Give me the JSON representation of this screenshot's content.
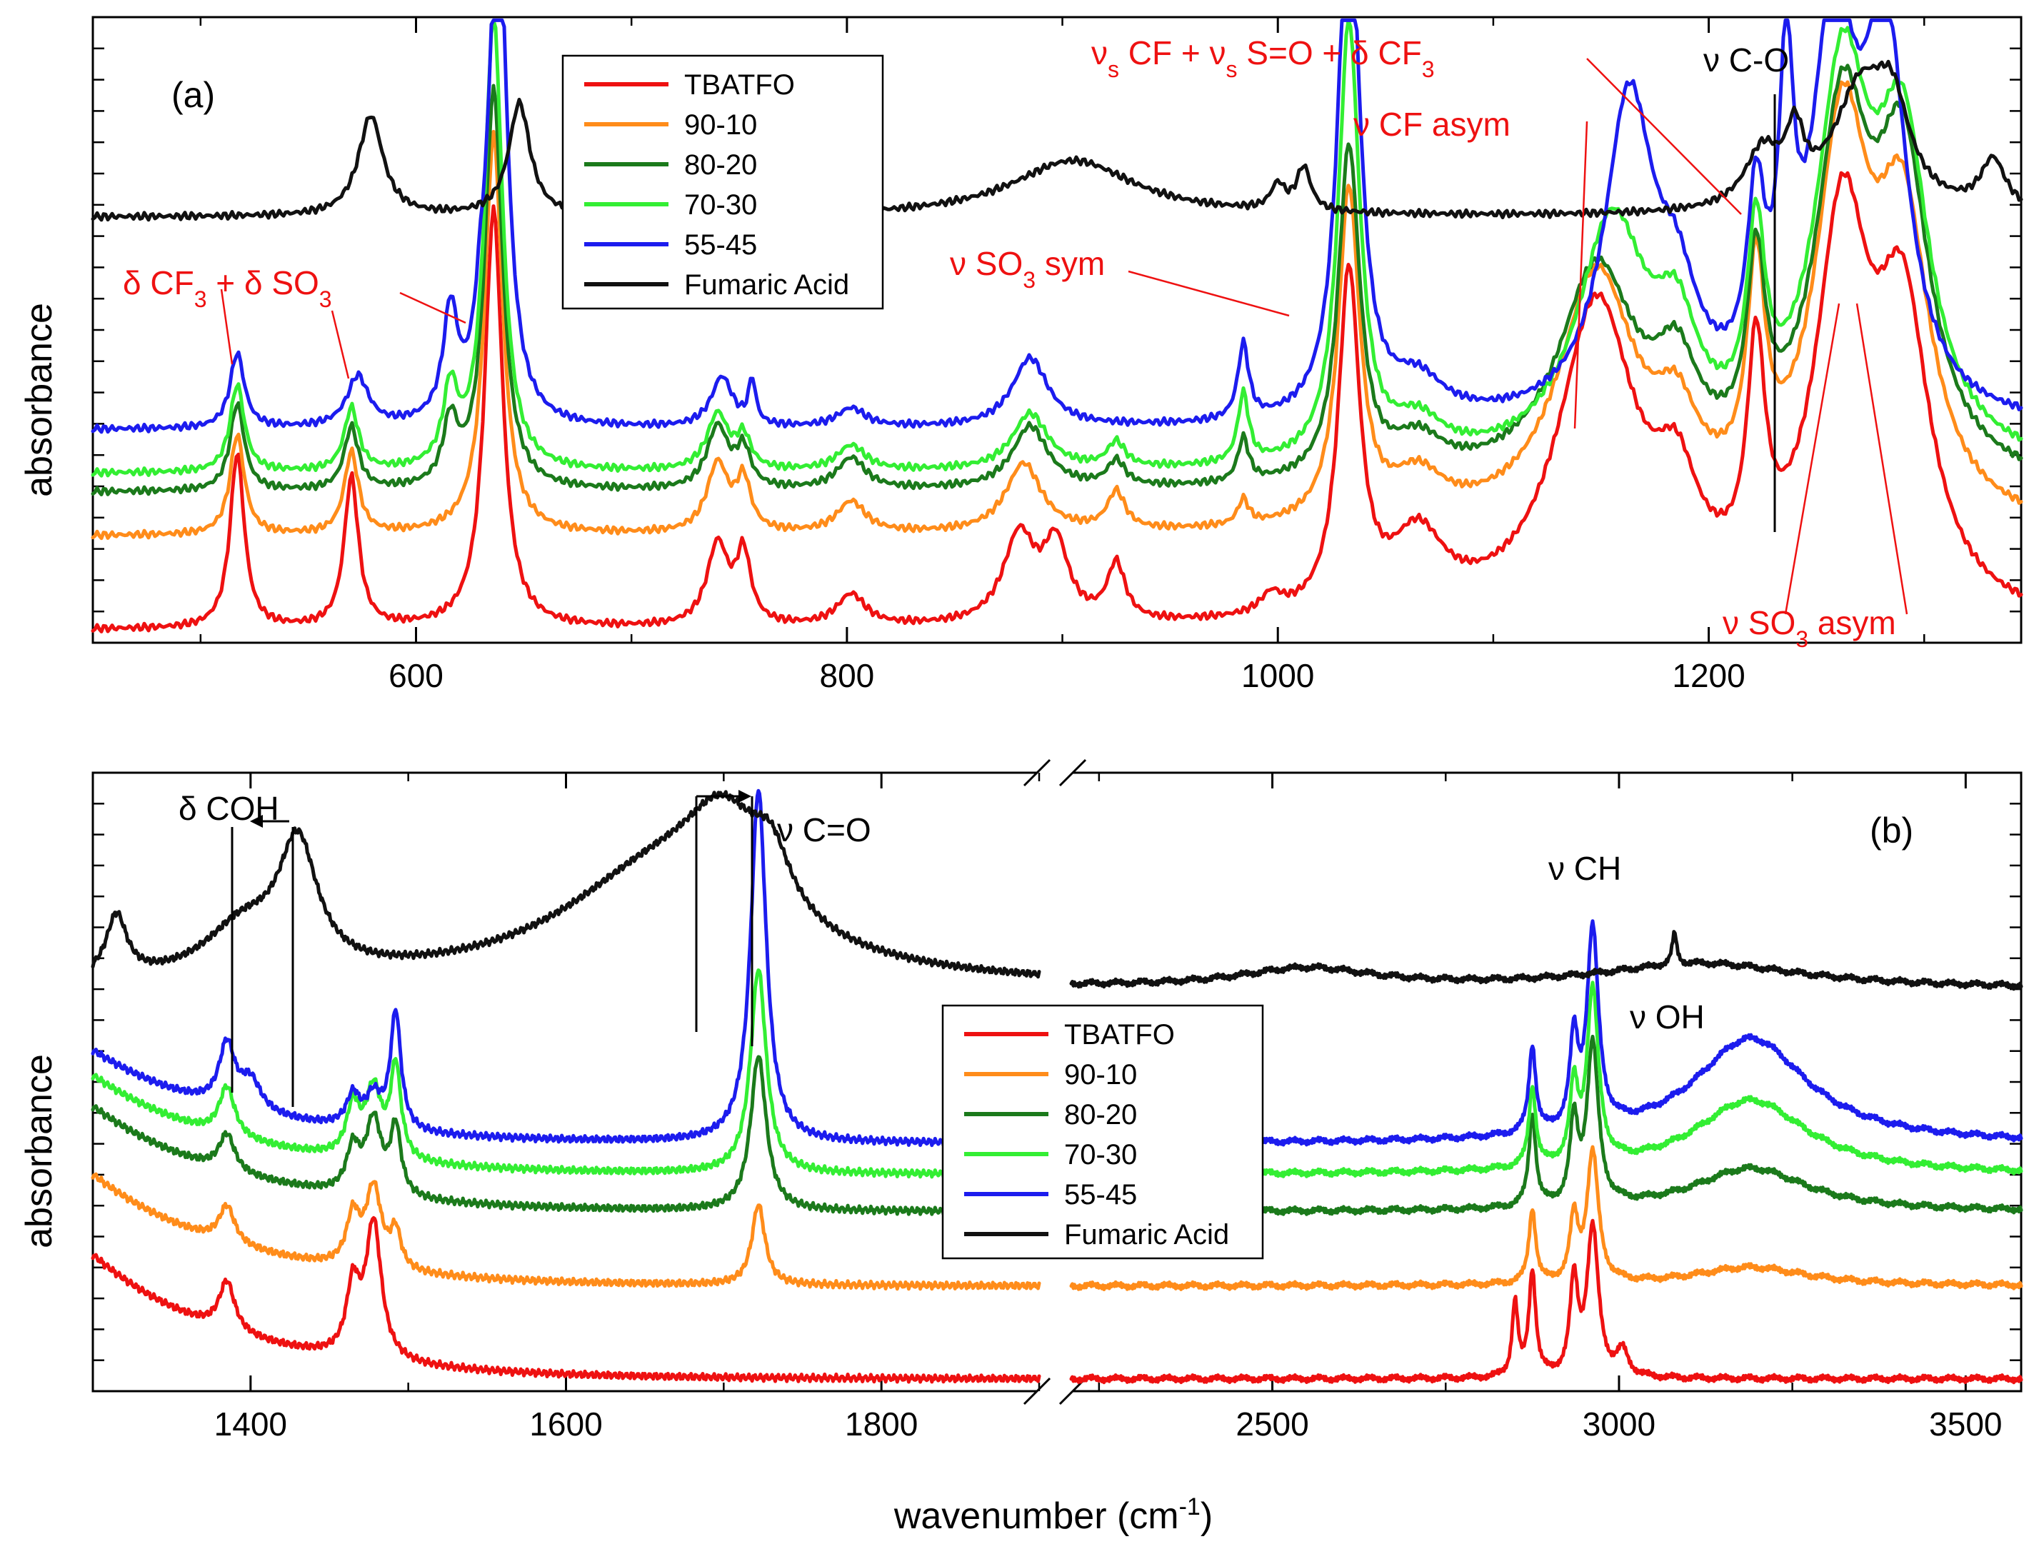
{
  "figure": {
    "y_axis_label": "absorbance",
    "x_axis_label_base": "wavenumber (cm",
    "x_axis_label_sup": "-1",
    "x_axis_label_end": ")"
  },
  "colors": {
    "TBATFO": "#ee1111",
    "90-10": "#ff8c1a",
    "80-20": "#1b7a1b",
    "70-30": "#33ee33",
    "55-45": "#1c1cee",
    "Fumaric Acid": "#111111",
    "annotation_red": "#ee1111"
  },
  "legend": {
    "entries": [
      "TBATFO",
      "90-10",
      "80-20",
      "70-30",
      "55-45",
      "Fumaric Acid"
    ]
  },
  "chart_data": [
    {
      "id": "a",
      "type": "line",
      "panel_label": "(a)",
      "xlabel": "",
      "ylabel": "absorbance",
      "xlim": [
        450,
        1345
      ],
      "ylim": [
        0,
        100
      ],
      "x_ticks": [
        600,
        800,
        1000,
        1200
      ],
      "x_tick_labels": [
        "600",
        "800",
        "1000",
        "1200"
      ],
      "annotations": [
        {
          "text": "δ CF3 + δ SO3",
          "color": "red"
        },
        {
          "text": "ν SO3 sym",
          "color": "red"
        },
        {
          "text": "ν CF asym",
          "color": "red"
        },
        {
          "text": "νs CF + νs S=O + δ CF3",
          "color": "red"
        },
        {
          "text": "ν C-O",
          "color": "black"
        },
        {
          "text": "ν SO3 asym",
          "color": "red"
        }
      ],
      "series": [
        {
          "name": "TBATFO",
          "baseline": 2,
          "peaks": [
            [
              517,
              28,
              4
            ],
            [
              570,
              24,
              4
            ],
            [
              636,
              67,
              5
            ],
            [
              740,
              13,
              6
            ],
            [
              752,
              11,
              4
            ],
            [
              802,
              5,
              8
            ],
            [
              880,
              14,
              9
            ],
            [
              897,
              12,
              7
            ],
            [
              925,
              9,
              5
            ],
            [
              997,
              3,
              6
            ],
            [
              1033,
              54,
              6
            ],
            [
              1065,
              12,
              15
            ],
            [
              1148,
              50,
              22
            ],
            [
              1185,
              15,
              12
            ],
            [
              1222,
              35,
              5
            ],
            [
              1262,
              60,
              15
            ],
            [
              1290,
              45,
              15
            ]
          ]
        },
        {
          "name": "90-10",
          "baseline": 17,
          "peaks": [
            [
              517,
              16,
              4
            ],
            [
              570,
              13,
              4
            ],
            [
              636,
              64,
              5
            ],
            [
              740,
              11,
              6
            ],
            [
              752,
              8,
              4
            ],
            [
              802,
              5,
              8
            ],
            [
              882,
              11,
              10
            ],
            [
              925,
              6,
              5
            ],
            [
              984,
              4,
              3
            ],
            [
              1033,
              53,
              6
            ],
            [
              1065,
              7,
              15
            ],
            [
              1148,
              40,
              22
            ],
            [
              1185,
              12,
              12
            ],
            [
              1222,
              34,
              5
            ],
            [
              1262,
              60,
              15
            ],
            [
              1290,
              45,
              15
            ]
          ]
        },
        {
          "name": "80-20",
          "baseline": 24,
          "peaks": [
            [
              517,
              14,
              4
            ],
            [
              570,
              10,
              4
            ],
            [
              616,
              10,
              4
            ],
            [
              636,
              64,
              5
            ],
            [
              740,
              10,
              6
            ],
            [
              752,
              6,
              4
            ],
            [
              802,
              5,
              8
            ],
            [
              885,
              10,
              10
            ],
            [
              925,
              4,
              5
            ],
            [
              984,
              7,
              3
            ],
            [
              1033,
              53,
              6
            ],
            [
              1065,
              6,
              15
            ],
            [
              1148,
              34,
              22
            ],
            [
              1185,
              14,
              12
            ],
            [
              1222,
              29,
              5
            ],
            [
              1262,
              55,
              15
            ],
            [
              1290,
              48,
              15
            ]
          ]
        },
        {
          "name": "70-30",
          "baseline": 27,
          "peaks": [
            [
              517,
              14,
              4
            ],
            [
              570,
              10,
              4
            ],
            [
              616,
              12,
              4
            ],
            [
              636,
              73,
              5
            ],
            [
              740,
              9,
              6
            ],
            [
              752,
              5,
              4
            ],
            [
              802,
              4,
              8
            ],
            [
              885,
              9,
              10
            ],
            [
              925,
              4,
              5
            ],
            [
              984,
              11,
              3
            ],
            [
              1033,
              70,
              6
            ],
            [
              1065,
              6,
              15
            ],
            [
              1155,
              38,
              20
            ],
            [
              1185,
              16,
              12
            ],
            [
              1222,
              30,
              5
            ],
            [
              1262,
              58,
              15
            ],
            [
              1290,
              48,
              15
            ]
          ]
        },
        {
          "name": "55-45",
          "baseline": 34,
          "peaks": [
            [
              517,
              12,
              4
            ],
            [
              573,
              8,
              6
            ],
            [
              616,
              17,
              4
            ],
            [
              630,
              8,
              3
            ],
            [
              638,
              85,
              5
            ],
            [
              742,
              8,
              6
            ],
            [
              756,
              7,
              2
            ],
            [
              802,
              3,
              8
            ],
            [
              885,
              11,
              10
            ],
            [
              984,
              12,
              3
            ],
            [
              1033,
              85,
              6
            ],
            [
              1065,
              6,
              15
            ],
            [
              1163,
              50,
              14
            ],
            [
              1185,
              15,
              12
            ],
            [
              1222,
              28,
              5
            ],
            [
              1236,
              45,
              4
            ],
            [
              1258,
              60,
              12
            ],
            [
              1282,
              58,
              12
            ]
          ]
        },
        {
          "name": "Fumaric Acid",
          "baseline": 68,
          "peaks": [
            [
              579,
              16,
              7
            ],
            [
              648,
              18,
              6
            ],
            [
              905,
              9,
              35
            ],
            [
              1012,
              7,
              4
            ],
            [
              1000,
              4,
              4
            ],
            [
              1225,
              9,
              10
            ],
            [
              1240,
              10,
              5
            ],
            [
              1270,
              18,
              15
            ],
            [
              1285,
              14,
              10
            ],
            [
              1332,
              8,
              7
            ]
          ]
        }
      ]
    },
    {
      "id": "b",
      "type": "line",
      "panel_label": "(b)",
      "xlabel": "wavenumber (cm-1)",
      "ylabel": "absorbance",
      "broken_x_axis": true,
      "segments": [
        {
          "xlim": [
            1300,
            1900
          ],
          "x_ticks": [
            1400,
            1600,
            1800
          ],
          "x_tick_labels": [
            "1400",
            "1600",
            "1800"
          ]
        },
        {
          "xlim": [
            2210,
            3580
          ],
          "x_ticks": [
            2500,
            3000,
            3500
          ],
          "x_tick_labels": [
            "2500",
            "3000",
            "3500"
          ]
        }
      ],
      "ylim": [
        0,
        100
      ],
      "annotations": [
        {
          "text": "δ COH",
          "color": "black"
        },
        {
          "text": "ν C=O",
          "color": "black"
        },
        {
          "text": "ν CH",
          "color": "black"
        },
        {
          "text": "ν OH",
          "color": "black"
        }
      ],
      "series": [
        {
          "name": "TBATFO",
          "baseline": 2,
          "slope_start": 1300,
          "slope_amount": 20,
          "slope_width": 90,
          "peaks": [
            [
              1385,
              8,
              6
            ],
            [
              1465,
              11,
              5
            ],
            [
              1478,
              22,
              6
            ],
            [
              2850,
              12,
              5
            ],
            [
              2875,
              17,
              6
            ],
            [
              2935,
              15,
              7
            ],
            [
              2962,
              24,
              10
            ],
            [
              3005,
              4,
              10
            ]
          ]
        },
        {
          "name": "90-10",
          "baseline": 17,
          "slope_start": 1300,
          "slope_amount": 18,
          "slope_width": 90,
          "peaks": [
            [
              1385,
              6,
              6
            ],
            [
              1465,
              8,
              5
            ],
            [
              1478,
              13,
              6
            ],
            [
              1492,
              6,
              4
            ],
            [
              1722,
              13,
              5
            ],
            [
              2875,
              12,
              6
            ],
            [
              2935,
              10,
              7
            ],
            [
              2962,
              21,
              10
            ],
            [
              3190,
              3,
              100
            ]
          ]
        },
        {
          "name": "80-20",
          "baseline": 29,
          "slope_start": 1300,
          "slope_amount": 17,
          "slope_width": 90,
          "peaks": [
            [
              1385,
              6,
              6
            ],
            [
              1465,
              7,
              5
            ],
            [
              1478,
              12,
              6
            ],
            [
              1492,
              11,
              4
            ],
            [
              1722,
              25,
              6
            ],
            [
              2875,
              15,
              6
            ],
            [
              2935,
              13,
              7
            ],
            [
              2962,
              26,
              10
            ],
            [
              3190,
              7,
              100
            ]
          ]
        },
        {
          "name": "70-30",
          "baseline": 35,
          "slope_start": 1300,
          "slope_amount": 16,
          "slope_width": 90,
          "peaks": [
            [
              1385,
              8,
              6
            ],
            [
              1465,
              8,
              5
            ],
            [
              1478,
              11,
              6
            ],
            [
              1492,
              15,
              4
            ],
            [
              1722,
              33,
              6
            ],
            [
              2875,
              13,
              6
            ],
            [
              2935,
              12,
              7
            ],
            [
              2962,
              28,
              10
            ],
            [
              3190,
              12,
              100
            ]
          ]
        },
        {
          "name": "55-45",
          "baseline": 40,
          "slope_start": 1300,
          "slope_amount": 15,
          "slope_width": 90,
          "peaks": [
            [
              1385,
              10,
              6
            ],
            [
              1400,
              5,
              8
            ],
            [
              1465,
              5,
              5
            ],
            [
              1478,
              5,
              6
            ],
            [
              1492,
              19,
              4
            ],
            [
              1722,
              57,
              6
            ],
            [
              2875,
              14,
              6
            ],
            [
              2935,
              14,
              7
            ],
            [
              2962,
              32,
              10
            ],
            [
              3190,
              17,
              100
            ]
          ]
        },
        {
          "name": "Fumaric Acid",
          "baseline": 65,
          "peaks": [
            [
              1315,
              10,
              8
            ],
            [
              1395,
              8,
              30
            ],
            [
              1430,
              20,
              15
            ],
            [
              1660,
              18,
              80
            ],
            [
              1700,
              15,
              30
            ],
            [
              1730,
              9,
              15
            ],
            [
              3080,
              5,
              4
            ],
            [
              3120,
              4,
              180
            ],
            [
              2550,
              3,
              120
            ]
          ]
        }
      ]
    }
  ]
}
